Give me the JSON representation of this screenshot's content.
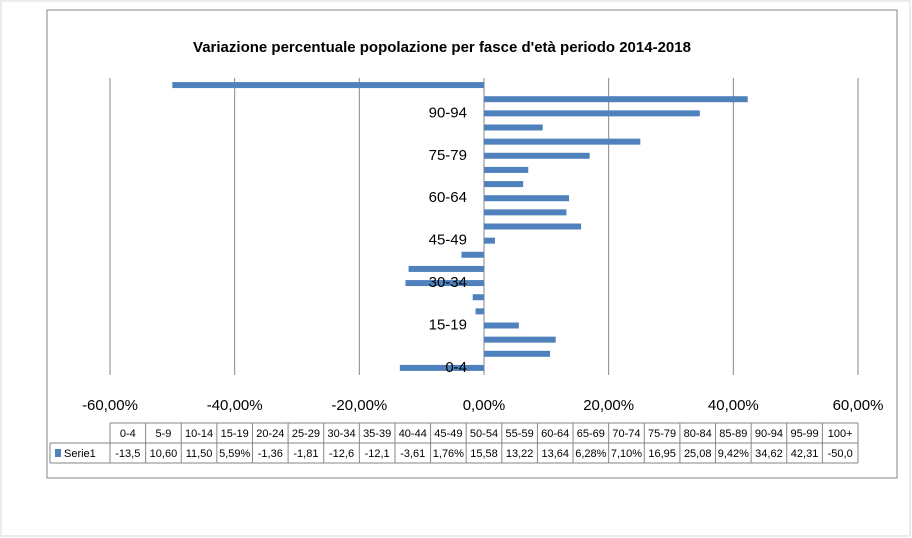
{
  "chart_data": {
    "type": "barh",
    "title": "Variazione percentuale popolazione per fasce d'età periodo 2014-2018",
    "categories": [
      "0-4",
      "5-9",
      "10-14",
      "15-19",
      "20-24",
      "25-29",
      "30-34",
      "35-39",
      "40-44",
      "45-49",
      "50-54",
      "55-59",
      "60-64",
      "65-69",
      "70-74",
      "75-79",
      "80-84",
      "85-89",
      "90-94",
      "95-99",
      "100+"
    ],
    "series": [
      {
        "name": "Serie1",
        "color": "#4f81bd",
        "values": [
          -13.5,
          10.6,
          11.5,
          5.59,
          -1.36,
          -1.81,
          -12.6,
          -12.1,
          -3.61,
          1.76,
          15.58,
          13.22,
          13.64,
          6.28,
          7.1,
          16.95,
          25.08,
          9.42,
          34.62,
          42.31,
          -50.0
        ],
        "value_labels": [
          "-13,5",
          "10,60",
          "11,50",
          "5,59%",
          "-1,36",
          "-1,81",
          "-12,6",
          "-12,1",
          "-3,61",
          "1,76%",
          "15,58",
          "13,22",
          "13,64",
          "6,28%",
          "7,10%",
          "16,95",
          "25,08",
          "9,42%",
          "34,62",
          "42,31",
          "-50,0"
        ]
      }
    ],
    "xlim": [
      -60,
      60
    ],
    "xticks": [
      {
        "value": -60,
        "label": "-60,00%"
      },
      {
        "value": -40,
        "label": "-40,00%"
      },
      {
        "value": -20,
        "label": "-20,00%"
      },
      {
        "value": 0,
        "label": "0,00%"
      },
      {
        "value": 20,
        "label": "20,00%"
      },
      {
        "value": 40,
        "label": "40,00%"
      },
      {
        "value": 60,
        "label": "60,00%"
      }
    ],
    "grid": true,
    "data_table": true
  }
}
